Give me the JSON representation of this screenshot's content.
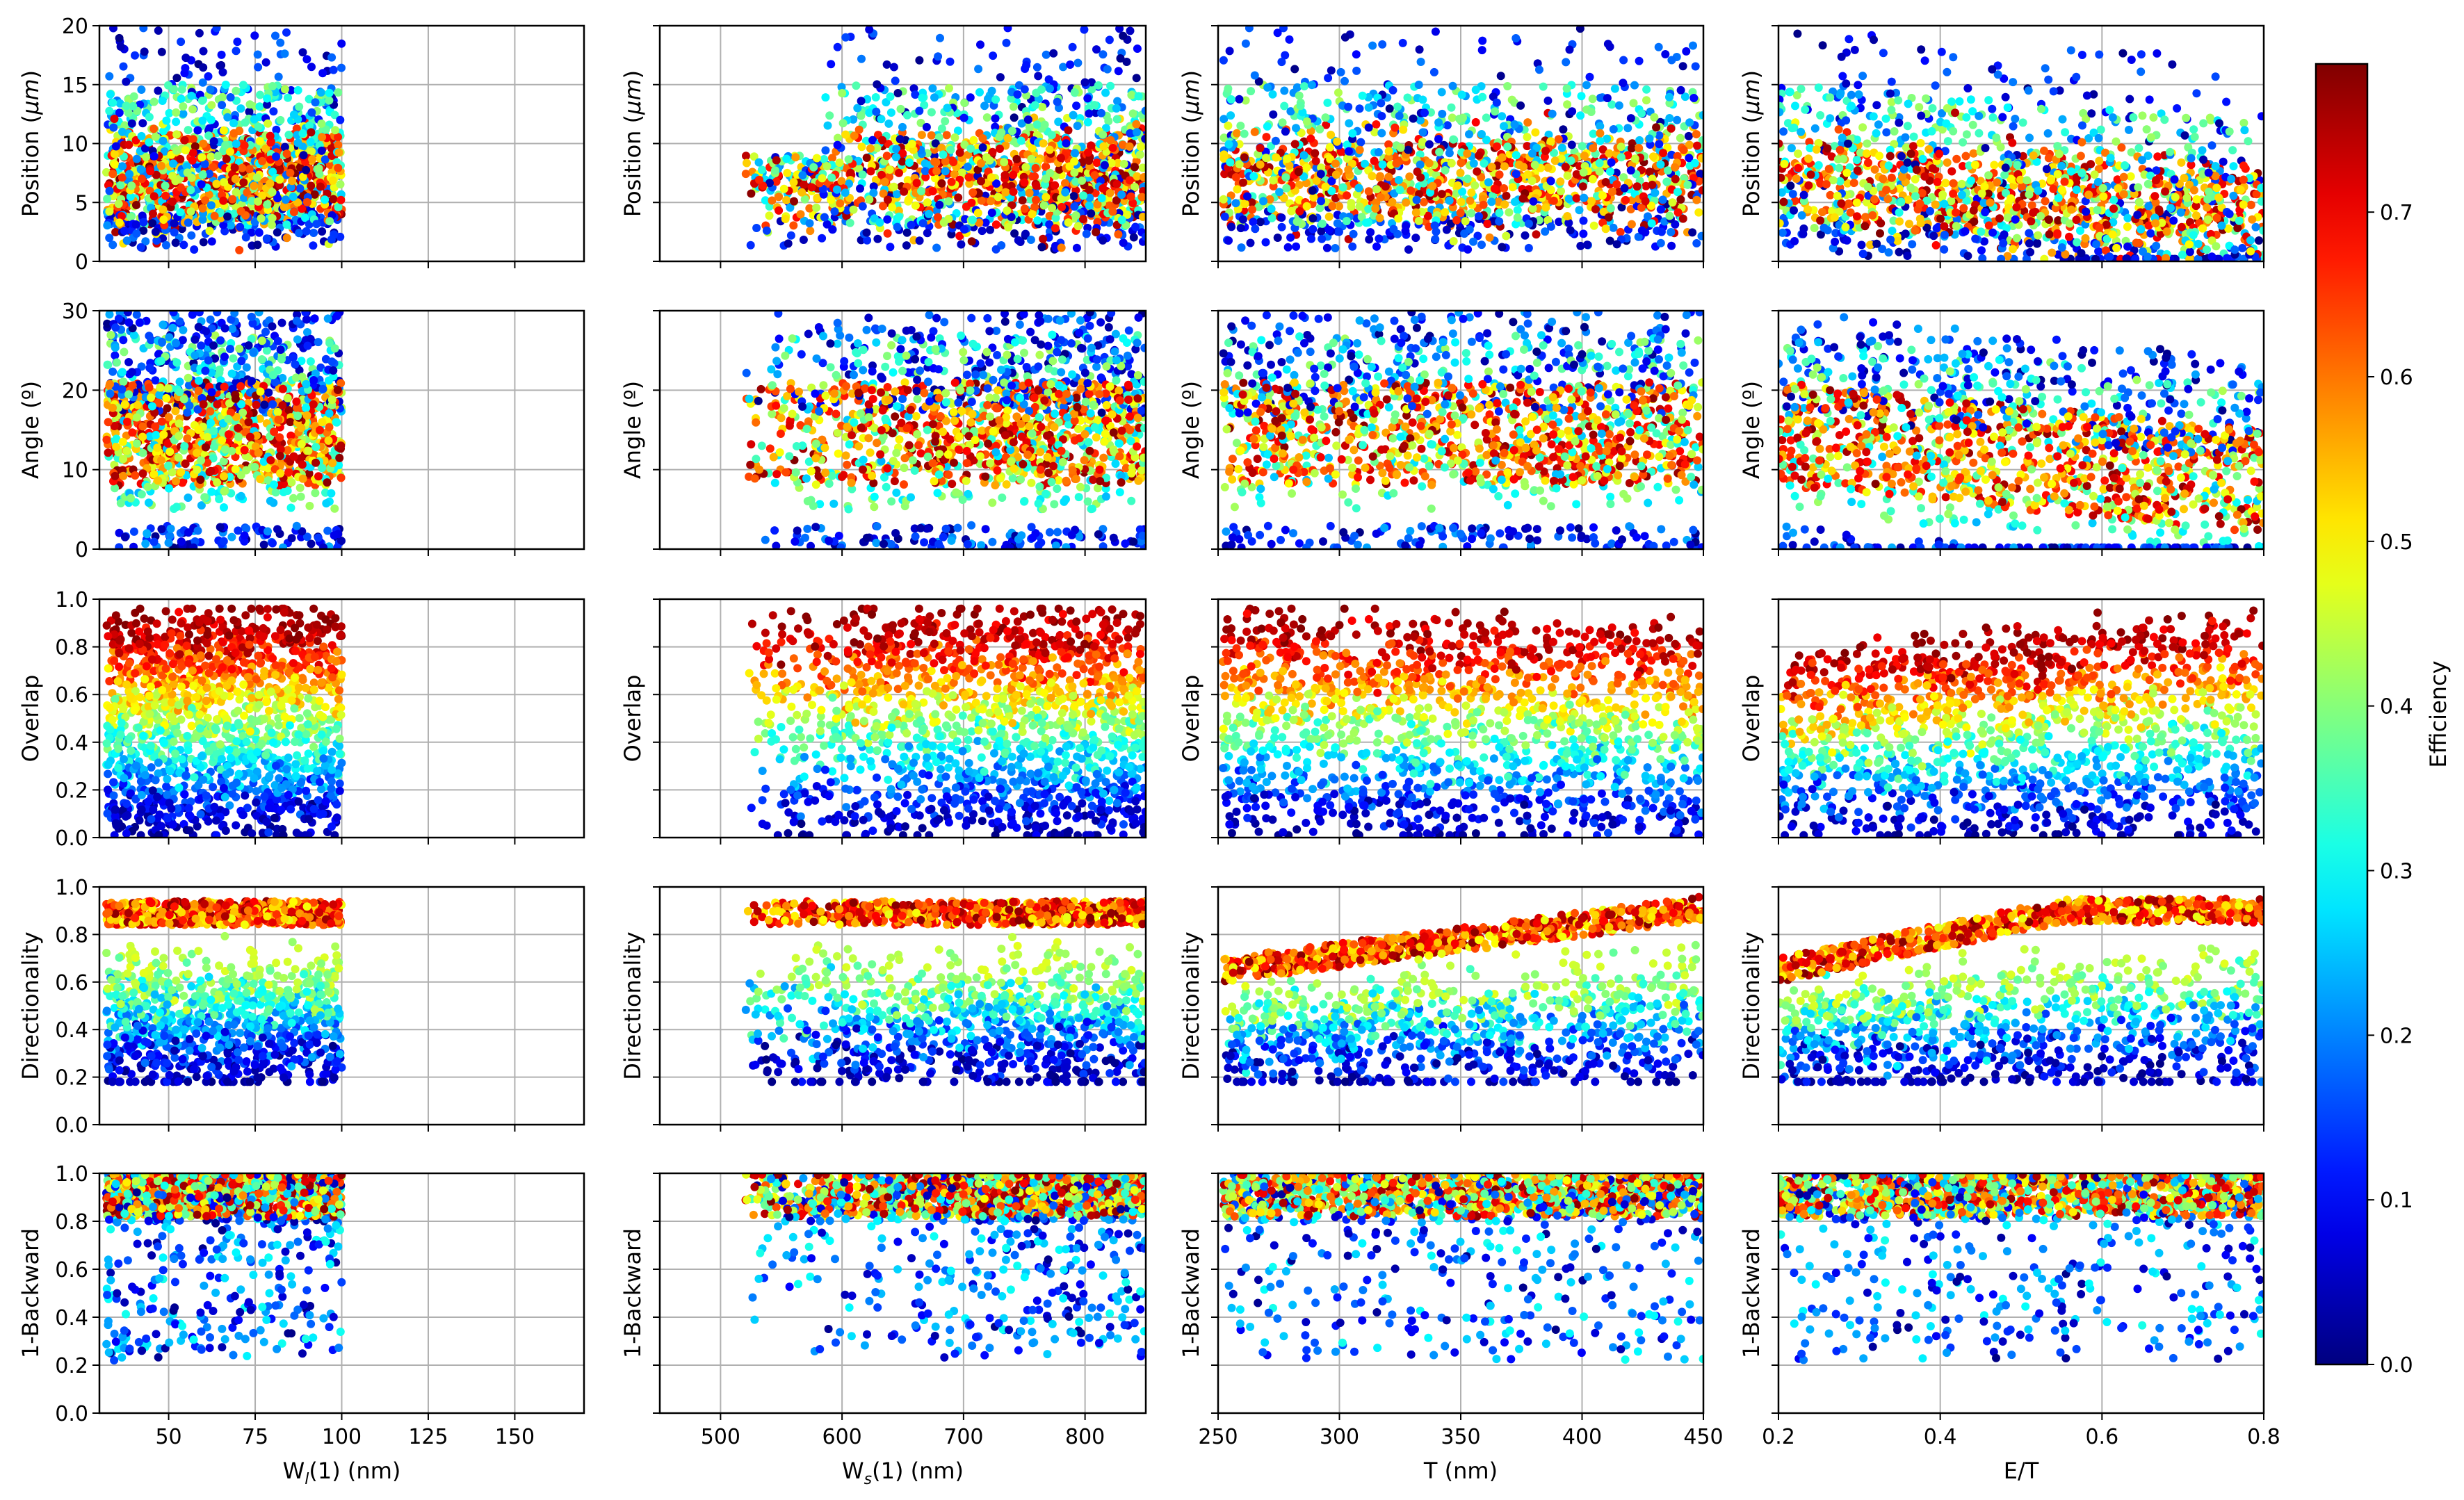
{
  "chart_data": {
    "type": "scatter",
    "layout": {
      "rows": 5,
      "cols": 4
    },
    "seed": 20240531,
    "colorbar": {
      "label": "Efficiency",
      "colormap": "jet",
      "min": 0.0,
      "max": 0.79,
      "ticks": [
        0.0,
        0.1,
        0.2,
        0.3,
        0.4,
        0.5,
        0.6,
        0.7
      ],
      "tick_labels": [
        "0.0",
        "0.1",
        "0.2",
        "0.3",
        "0.4",
        "0.5",
        "0.6",
        "0.7"
      ]
    },
    "columns": [
      {
        "xlabel_main": "W",
        "xlabel_sub": "l",
        "xlabel_rest": "(1) (nm)",
        "xlim": [
          30,
          170
        ],
        "xticks": [
          50,
          75,
          100,
          125,
          150
        ],
        "xtick_labels": [
          "50",
          "75",
          "100",
          "125",
          "150"
        ],
        "data_x_range": [
          32,
          100
        ],
        "points_per_panel": 1500,
        "x_density_bias": 0
      },
      {
        "xlabel_main": "W",
        "xlabel_sub": "s",
        "xlabel_rest": "(1) (nm)",
        "xlim": [
          450,
          850
        ],
        "xticks": [
          500,
          600,
          700,
          800
        ],
        "xtick_labels": [
          "500",
          "600",
          "700",
          "800"
        ],
        "data_x_range": [
          520,
          850
        ],
        "points_per_panel": 1500,
        "x_density_bias": 0.3
      },
      {
        "xlabel_main": "T (nm)",
        "xlabel_sub": "",
        "xlabel_rest": "",
        "xlim": [
          250,
          450
        ],
        "xticks": [
          250,
          300,
          350,
          400,
          450
        ],
        "xtick_labels": [
          "250",
          "300",
          "350",
          "400",
          "450"
        ],
        "data_x_range": [
          252,
          450
        ],
        "points_per_panel": 1500,
        "x_density_bias": 0
      },
      {
        "xlabel_main": "E/T",
        "xlabel_sub": "",
        "xlabel_rest": "",
        "xlim": [
          0.2,
          0.8
        ],
        "xticks": [
          0.2,
          0.4,
          0.6,
          0.8
        ],
        "xtick_labels": [
          "0.2",
          "0.4",
          "0.6",
          "0.8"
        ],
        "data_x_range": [
          0.2,
          0.8
        ],
        "points_per_panel": 1500,
        "x_density_bias": 0
      }
    ],
    "rows": [
      {
        "ylabel": "Position (",
        "ylabel_math": "μm",
        "ylabel_end": ")",
        "ylim": [
          0,
          20
        ],
        "yticks": [
          0,
          5,
          10,
          15,
          20
        ],
        "ytick_labels": [
          "0",
          "5",
          "10",
          "15",
          "20"
        ]
      },
      {
        "ylabel": "Angle (º)",
        "ylabel_math": "",
        "ylabel_end": "",
        "ylim": [
          0,
          30
        ],
        "yticks": [
          0,
          10,
          20,
          30
        ],
        "ytick_labels": [
          "0",
          "10",
          "20",
          "30"
        ]
      },
      {
        "ylabel": "Overlap",
        "ylabel_math": "",
        "ylabel_end": "",
        "ylim": [
          0,
          1
        ],
        "yticks": [
          0.0,
          0.2,
          0.4,
          0.6,
          0.8,
          1.0
        ],
        "ytick_labels": [
          "0.0",
          "0.2",
          "0.4",
          "0.6",
          "0.8",
          "1.0"
        ]
      },
      {
        "ylabel": "Directionality",
        "ylabel_math": "",
        "ylabel_end": "",
        "ylim": [
          0,
          1
        ],
        "yticks": [
          0.0,
          0.2,
          0.4,
          0.6,
          0.8,
          1.0
        ],
        "ytick_labels": [
          "0.0",
          "0.2",
          "0.4",
          "0.6",
          "0.8",
          "1.0"
        ]
      },
      {
        "ylabel": "1-Backward",
        "ylabel_math": "",
        "ylabel_end": "",
        "ylim": [
          0,
          1
        ],
        "yticks": [
          0.0,
          0.2,
          0.4,
          0.6,
          0.8,
          1.0
        ],
        "ytick_labels": [
          "0.0",
          "0.2",
          "0.4",
          "0.6",
          "0.8",
          "1.0"
        ]
      }
    ]
  }
}
